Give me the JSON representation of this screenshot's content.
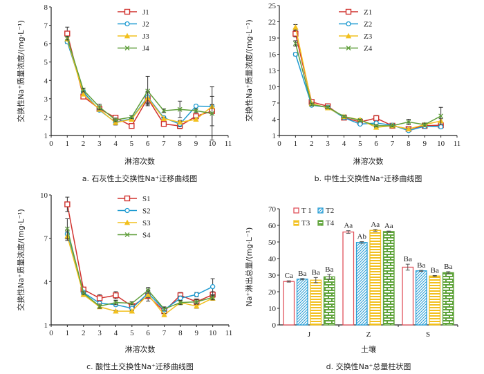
{
  "chart_data": [
    {
      "id": "a",
      "type": "line",
      "caption": "a. 石灰性土交换性Na⁺迁移曲线图",
      "xlabel": "淋溶次数",
      "ylabel": "交换性Na⁺质量浓度/(mg·L⁻¹)",
      "xlim": [
        0,
        11
      ],
      "ylim": [
        1,
        8
      ],
      "xticks": [
        0,
        1,
        2,
        3,
        4,
        5,
        6,
        7,
        8,
        9,
        10,
        11
      ],
      "yticks": [
        1,
        2,
        3,
        4,
        5,
        6,
        7,
        8
      ],
      "legend": "top-center",
      "x": [
        1,
        2,
        3,
        4,
        5,
        6,
        7,
        8,
        9,
        10
      ],
      "series": [
        {
          "name": "J1",
          "color": "#d0312d",
          "marker": "square",
          "values": [
            6.55,
            3.12,
            2.45,
            1.97,
            1.52,
            3.02,
            1.63,
            1.52,
            2.05,
            2.33
          ],
          "errors": [
            0.35,
            0.08,
            0.1,
            0.08,
            0.08,
            0.35,
            0.08,
            0.15,
            0.1,
            0.8
          ]
        },
        {
          "name": "J2",
          "color": "#1f9bd1",
          "marker": "circle",
          "values": [
            6.1,
            3.38,
            2.38,
            1.72,
            1.92,
            3.1,
            1.97,
            1.62,
            2.6,
            2.58
          ],
          "errors": [
            0.1,
            0.1,
            0.08,
            0.15,
            0.08,
            0.3,
            0.08,
            0.15,
            0.05,
            0.1
          ]
        },
        {
          "name": "J3",
          "color": "#f2c01e",
          "marker": "triangle",
          "values": [
            6.25,
            3.25,
            2.42,
            1.7,
            1.88,
            3.05,
            1.92,
            1.72,
            1.88,
            2.58
          ],
          "errors": [
            0.1,
            0.1,
            0.08,
            0.1,
            0.08,
            0.3,
            0.08,
            0.1,
            0.08,
            0.1
          ]
        },
        {
          "name": "J4",
          "color": "#5f9e3a",
          "marker": "x",
          "values": [
            6.3,
            3.48,
            2.55,
            1.85,
            2.0,
            3.42,
            2.35,
            2.42,
            2.35,
            2.2
          ],
          "errors": [
            0.1,
            0.1,
            0.15,
            0.1,
            0.08,
            0.8,
            0.1,
            0.45,
            0.1,
            1.45
          ]
        }
      ]
    },
    {
      "id": "b",
      "type": "line",
      "caption": "b. 中性土交换性Na⁺迁移曲线图",
      "xlabel": "淋溶次数",
      "ylabel": "交换性Na⁺质量浓度/(mg·L⁻¹)",
      "xlim": [
        0,
        11
      ],
      "ylim": [
        1,
        25
      ],
      "xticks": [
        0,
        1,
        2,
        3,
        4,
        5,
        6,
        7,
        8,
        9,
        10,
        11
      ],
      "yticks": [
        1,
        4,
        7,
        10,
        13,
        16,
        19,
        22,
        25
      ],
      "legend": "top-center",
      "x": [
        1,
        2,
        3,
        4,
        5,
        6,
        7,
        8,
        9,
        10
      ],
      "series": [
        {
          "name": "Z1",
          "color": "#d0312d",
          "marker": "square",
          "values": [
            19.8,
            7.2,
            6.4,
            4.3,
            3.5,
            4.2,
            2.8,
            2.2,
            2.8,
            2.9
          ],
          "errors": [
            0.6,
            0.2,
            0.2,
            0.2,
            0.2,
            0.5,
            0.2,
            0.2,
            0.5,
            0.4
          ]
        },
        {
          "name": "Z2",
          "color": "#1f9bd1",
          "marker": "circle",
          "values": [
            16.0,
            6.6,
            6.2,
            4.3,
            3.1,
            3.3,
            2.9,
            1.9,
            2.7,
            2.6
          ],
          "errors": [
            0.3,
            0.2,
            0.2,
            0.2,
            0.2,
            0.3,
            0.2,
            0.2,
            0.3,
            0.3
          ]
        },
        {
          "name": "Z3",
          "color": "#f2c01e",
          "marker": "triangle",
          "values": [
            21.0,
            6.9,
            6.1,
            4.5,
            3.9,
            2.5,
            2.8,
            2.2,
            3.0,
            3.7
          ],
          "errors": [
            0.5,
            0.2,
            0.2,
            0.2,
            0.2,
            0.2,
            0.2,
            0.2,
            0.3,
            0.4
          ]
        },
        {
          "name": "Z4",
          "color": "#5f9e3a",
          "marker": "x",
          "values": [
            18.0,
            6.7,
            6.2,
            4.5,
            3.8,
            2.8,
            2.8,
            3.5,
            3.0,
            4.6
          ],
          "errors": [
            0.5,
            0.2,
            0.2,
            0.2,
            0.2,
            0.2,
            0.2,
            0.5,
            0.3,
            1.6
          ]
        }
      ]
    },
    {
      "id": "c",
      "type": "line",
      "caption": "c. 酸性土交换性Na⁺迁移曲线图",
      "xlabel": "淋溶次数",
      "ylabel": "交换性Na⁺质量浓度/(mg·L⁻¹)",
      "xlim": [
        0,
        11
      ],
      "ylim": [
        1,
        10
      ],
      "xticks": [
        0,
        1,
        2,
        3,
        4,
        5,
        6,
        7,
        8,
        9,
        10,
        11
      ],
      "yticks": [
        1,
        4,
        7,
        10
      ],
      "legend": "top-center",
      "x": [
        1,
        2,
        3,
        4,
        5,
        6,
        7,
        8,
        9,
        10
      ],
      "series": [
        {
          "name": "S1",
          "color": "#d0312d",
          "marker": "square",
          "values": [
            9.35,
            3.45,
            2.85,
            3.05,
            2.3,
            3.0,
            1.95,
            3.05,
            2.6,
            3.1
          ],
          "errors": [
            0.5,
            0.1,
            0.25,
            0.25,
            0.15,
            0.35,
            0.3,
            0.2,
            0.2,
            0.2
          ]
        },
        {
          "name": "S2",
          "color": "#1f9bd1",
          "marker": "circle",
          "values": [
            7.3,
            3.25,
            2.5,
            2.4,
            2.15,
            3.2,
            2.05,
            2.85,
            3.1,
            3.65
          ],
          "errors": [
            0.3,
            0.1,
            0.1,
            0.1,
            0.1,
            0.2,
            0.1,
            0.15,
            0.15,
            0.55
          ]
        },
        {
          "name": "S3",
          "color": "#f2c01e",
          "marker": "triangle",
          "values": [
            7.15,
            3.1,
            2.25,
            1.95,
            1.95,
            3.1,
            1.7,
            2.55,
            2.3,
            2.85
          ],
          "errors": [
            0.3,
            0.1,
            0.1,
            0.05,
            0.05,
            0.2,
            0.1,
            0.1,
            0.15,
            0.15
          ]
        },
        {
          "name": "S4",
          "color": "#5f9e3a",
          "marker": "x",
          "values": [
            7.65,
            3.2,
            2.3,
            2.55,
            2.5,
            3.4,
            2.1,
            2.55,
            2.6,
            2.9
          ],
          "errors": [
            0.7,
            0.1,
            0.15,
            0.15,
            0.1,
            0.2,
            0.1,
            0.15,
            0.15,
            0.15
          ]
        }
      ]
    },
    {
      "id": "d",
      "type": "bar",
      "caption": "d. 交换性Na⁺总量柱状图",
      "xlabel": "土壤",
      "ylabel": "Na⁺淋出总量/(mg·L⁻¹)",
      "ylim": [
        0,
        70
      ],
      "yticks": [
        0,
        10,
        20,
        30,
        40,
        50,
        60,
        70
      ],
      "categories": [
        "J",
        "Z",
        "S"
      ],
      "legend": "top-left",
      "series": [
        {
          "name": "T 1",
          "color": "#e0505a",
          "pattern": "empty",
          "values": [
            26.2,
            56.0,
            34.8
          ],
          "errors": [
            0.4,
            0.8,
            1.8
          ],
          "labels": [
            "Ca",
            "Aa",
            "Ba"
          ]
        },
        {
          "name": "T2",
          "color": "#2a9fd6",
          "pattern": "diagonal",
          "values": [
            27.6,
            49.7,
            32.6
          ],
          "errors": [
            0.4,
            0.5,
            0.3
          ],
          "labels": [
            "Ba",
            "Ab",
            "Ba"
          ]
        },
        {
          "name": "T3",
          "color": "#f2c01e",
          "pattern": "horizontal",
          "values": [
            27.0,
            57.0,
            29.5
          ],
          "errors": [
            1.6,
            0.6,
            0.3
          ],
          "labels": [
            "Ba",
            "Aa",
            "Ba"
          ]
        },
        {
          "name": "T4",
          "color": "#5fa33a",
          "pattern": "brick",
          "values": [
            29.0,
            56.3,
            31.5
          ],
          "errors": [
            1.5,
            0.3,
            0.6
          ],
          "labels": [
            "Ba",
            "Aa",
            "Ba"
          ]
        }
      ]
    }
  ]
}
